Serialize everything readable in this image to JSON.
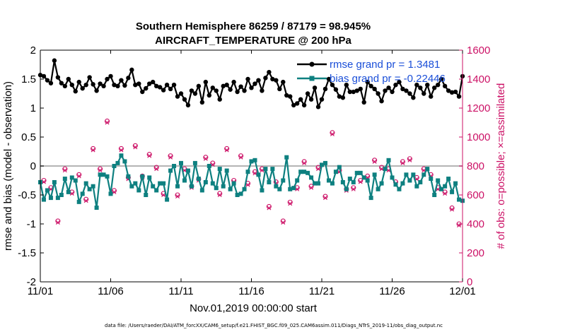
{
  "chart_data": {
    "type": "line",
    "title": "Southern Hemisphere 86259 / 87179 = 98.945%",
    "subtitle": "AIRCRAFT_TEMPERATURE @ 200 hPa",
    "xlabel": "Nov.01,2019 00:00:00 start",
    "ylabel_left": "rmse and bias (model - observation)",
    "ylabel_right": "# of obs: o=possible; ×=assimilated",
    "footnote": "data file: /Users/raeder/DAI/ATM_forcXX/CAM6_setup/f.e21.FHIST_BGC.f09_025.CAM6assim.011/Diags_NTrS_2019-11/obs_diag_output.nc",
    "x_range": [
      0,
      30
    ],
    "x_ticks": [
      0,
      5,
      10,
      15,
      20,
      25,
      30
    ],
    "x_tick_labels": [
      "11/01",
      "11/06",
      "11/11",
      "11/16",
      "11/21",
      "11/26",
      "12/01"
    ],
    "ylim_left": [
      -2,
      2
    ],
    "y_ticks_left": [
      "2",
      "1.5",
      "1",
      "0.5",
      "0",
      "-0.5",
      "-1",
      "-1.5",
      "-2"
    ],
    "ylim_right": [
      0,
      1600
    ],
    "y_ticks_right": [
      "1600",
      "1400",
      "1200",
      "1000",
      "800",
      "600",
      "400",
      "200",
      "0"
    ],
    "zero_line": 0,
    "colors": {
      "rmse": "#000000",
      "bias": "#0e8080",
      "counts": "#cc1166",
      "legend_text": "#1b4fd8",
      "zero": "#b5b5b5"
    },
    "legend": [
      "rmse grand pr = 1.3481",
      "bias grand pr = -0.22446"
    ],
    "series": [
      {
        "name": "rmse",
        "axis": "left",
        "x": [
          0.0,
          0.25,
          0.5,
          0.75,
          1.0,
          1.25,
          1.5,
          1.75,
          2.0,
          2.25,
          2.5,
          2.75,
          3.0,
          3.25,
          3.5,
          3.75,
          4.0,
          4.25,
          4.5,
          4.75,
          5.0,
          5.25,
          5.5,
          5.75,
          6.0,
          6.25,
          6.5,
          6.75,
          7.0,
          7.25,
          7.5,
          7.75,
          8.0,
          8.25,
          8.5,
          8.75,
          9.0,
          9.25,
          9.5,
          9.75,
          10.0,
          10.25,
          10.5,
          10.75,
          11.0,
          11.25,
          11.5,
          11.75,
          12.0,
          12.25,
          12.5,
          12.75,
          13.0,
          13.25,
          13.5,
          13.75,
          14.0,
          14.25,
          14.5,
          14.75,
          15.0,
          15.25,
          15.5,
          15.75,
          16.0,
          16.25,
          16.5,
          16.75,
          17.0,
          17.25,
          17.5,
          17.75,
          18.0,
          18.25,
          18.5,
          18.75,
          19.0,
          19.25,
          19.5,
          19.75,
          20.0,
          20.25,
          20.5,
          20.75,
          21.0,
          21.25,
          21.5,
          21.75,
          22.0,
          22.25,
          22.5,
          22.75,
          23.0,
          23.25,
          23.5,
          23.75,
          24.0,
          24.25,
          24.5,
          24.75,
          25.0,
          25.25,
          25.5,
          25.75,
          26.0,
          26.25,
          26.5,
          26.75,
          27.0,
          27.25,
          27.5,
          27.75,
          28.0,
          28.25,
          28.5,
          28.75,
          29.0,
          29.25,
          29.5,
          29.75,
          30.0
        ],
        "values": [
          1.57,
          1.55,
          1.48,
          1.43,
          1.82,
          1.53,
          1.43,
          1.38,
          1.5,
          1.4,
          1.29,
          1.45,
          1.34,
          1.4,
          1.53,
          1.41,
          1.3,
          1.42,
          1.38,
          1.5,
          1.55,
          1.4,
          1.38,
          1.48,
          1.39,
          1.52,
          1.66,
          1.4,
          1.42,
          1.28,
          1.34,
          1.42,
          1.45,
          1.38,
          1.36,
          1.31,
          1.4,
          1.33,
          1.4,
          1.2,
          1.25,
          1.15,
          1.05,
          1.3,
          1.25,
          1.38,
          1.1,
          1.45,
          1.22,
          1.35,
          1.3,
          1.15,
          1.38,
          1.4,
          1.32,
          1.45,
          1.28,
          1.37,
          1.3,
          1.5,
          1.35,
          1.42,
          1.48,
          1.3,
          1.52,
          1.62,
          1.5,
          1.48,
          1.33,
          1.45,
          1.22,
          1.2,
          1.05,
          1.08,
          1.15,
          1.05,
          1.25,
          1.15,
          1.35,
          1.02,
          1.15,
          1.33,
          1.5,
          1.4,
          1.32,
          1.2,
          1.18,
          1.4,
          1.28,
          1.28,
          1.3,
          1.33,
          1.1,
          1.45,
          1.38,
          1.33,
          1.25,
          1.12,
          1.3,
          1.35,
          1.28,
          1.4,
          1.45,
          1.33,
          1.3,
          1.25,
          1.18,
          1.4,
          1.35,
          1.25,
          1.4,
          1.2,
          1.35,
          1.4,
          1.5,
          1.38,
          1.3,
          1.27,
          1.28,
          1.2,
          1.55
        ]
      },
      {
        "name": "bias",
        "axis": "left",
        "x": [
          0.0,
          0.25,
          0.5,
          0.75,
          1.0,
          1.25,
          1.5,
          1.75,
          2.0,
          2.25,
          2.5,
          2.75,
          3.0,
          3.25,
          3.5,
          3.75,
          4.0,
          4.25,
          4.5,
          4.75,
          5.0,
          5.25,
          5.5,
          5.75,
          6.0,
          6.25,
          6.5,
          6.75,
          7.0,
          7.25,
          7.5,
          7.75,
          8.0,
          8.25,
          8.5,
          8.75,
          9.0,
          9.25,
          9.5,
          9.75,
          10.0,
          10.25,
          10.5,
          10.75,
          11.0,
          11.25,
          11.5,
          11.75,
          12.0,
          12.25,
          12.5,
          12.75,
          13.0,
          13.25,
          13.5,
          13.75,
          14.0,
          14.25,
          14.5,
          14.75,
          15.0,
          15.25,
          15.5,
          15.75,
          16.0,
          16.25,
          16.5,
          16.75,
          17.0,
          17.25,
          17.5,
          17.75,
          18.0,
          18.25,
          18.5,
          18.75,
          19.0,
          19.25,
          19.5,
          19.75,
          20.0,
          20.25,
          20.5,
          20.75,
          21.0,
          21.25,
          21.5,
          21.75,
          22.0,
          22.25,
          22.5,
          22.75,
          23.0,
          23.25,
          23.5,
          23.75,
          24.0,
          24.25,
          24.5,
          24.75,
          25.0,
          25.25,
          25.5,
          25.75,
          26.0,
          26.25,
          26.5,
          26.75,
          27.0,
          27.25,
          27.5,
          27.75,
          28.0,
          28.25,
          28.5,
          28.75,
          29.0,
          29.25,
          29.5,
          29.75,
          30.0
        ],
        "values": [
          -0.28,
          -0.58,
          -0.42,
          -0.55,
          -0.28,
          -0.55,
          -0.5,
          -0.22,
          -0.45,
          -0.2,
          -0.25,
          -0.62,
          -0.48,
          -0.3,
          -0.4,
          -0.35,
          -0.72,
          -0.15,
          -0.15,
          -0.18,
          -0.48,
          0.0,
          0.05,
          0.18,
          0.08,
          -0.18,
          -0.35,
          -0.3,
          -0.42,
          -0.18,
          -0.5,
          -0.2,
          -0.35,
          -0.42,
          -0.3,
          -0.3,
          -0.58,
          -0.08,
          0.0,
          -0.35,
          0.05,
          -0.25,
          -0.08,
          -0.35,
          0.05,
          -0.22,
          -0.42,
          -0.28,
          0.0,
          -0.3,
          -0.38,
          -0.05,
          -0.35,
          -0.08,
          -0.4,
          -0.3,
          -0.5,
          -0.48,
          -0.4,
          -0.1,
          0.08,
          0.1,
          -0.15,
          -0.42,
          -0.05,
          -0.28,
          -0.05,
          -0.35,
          -0.4,
          -0.25,
          0.15,
          -0.4,
          -0.38,
          -0.25,
          -0.1,
          -0.1,
          -0.12,
          -0.2,
          -0.3,
          -0.3,
          0.02,
          0.05,
          -0.25,
          -0.3,
          -0.1,
          -0.02,
          -0.28,
          -0.4,
          -0.22,
          -0.28,
          -0.12,
          -0.12,
          -0.2,
          -0.25,
          -0.55,
          -0.15,
          -0.4,
          -0.3,
          -0.05,
          0.1,
          -0.2,
          -0.32,
          -0.4,
          -0.3,
          -0.15,
          -0.25,
          -0.15,
          -0.35,
          -0.28,
          -0.15,
          -0.05,
          -0.22,
          -0.5,
          -0.25,
          -0.4,
          -0.35,
          -0.22,
          -0.45,
          -0.3,
          -0.58,
          -0.6
        ]
      },
      {
        "name": "obs possible",
        "axis": "right",
        "marker": "o",
        "x": [
          0.25,
          0.75,
          1.25,
          1.75,
          2.25,
          2.75,
          3.25,
          3.75,
          4.25,
          4.75,
          5.25,
          5.75,
          6.25,
          6.75,
          7.25,
          7.75,
          8.25,
          8.75,
          9.25,
          9.75,
          10.25,
          10.75,
          11.25,
          11.75,
          12.25,
          12.75,
          13.25,
          13.75,
          14.25,
          14.75,
          15.25,
          15.75,
          16.25,
          16.75,
          17.25,
          17.75,
          18.25,
          18.75,
          19.25,
          19.75,
          20.25,
          20.75,
          21.25,
          21.75,
          22.25,
          22.75,
          23.25,
          23.75,
          24.25,
          24.75,
          25.25,
          25.75,
          26.25,
          26.75,
          27.25,
          27.75,
          28.25,
          28.75,
          29.25,
          29.75
        ],
        "values": [
          700,
          650,
          420,
          780,
          620,
          740,
          570,
          920,
          780,
          1110,
          630,
          920,
          720,
          940,
          730,
          880,
          790,
          610,
          870,
          600,
          780,
          660,
          710,
          860,
          820,
          610,
          920,
          700,
          870,
          680,
          760,
          780,
          520,
          690,
          420,
          550,
          650,
          830,
          660,
          790,
          590,
          1030,
          770,
          640,
          650,
          700,
          730,
          840,
          790,
          780,
          690,
          830,
          850,
          720,
          780,
          740,
          650,
          620,
          510,
          400
        ]
      },
      {
        "name": "obs assimilated",
        "axis": "right",
        "marker": "x",
        "x": [
          0.25,
          0.75,
          1.25,
          1.75,
          2.25,
          2.75,
          3.25,
          3.75,
          4.25,
          4.75,
          5.25,
          5.75,
          6.25,
          6.75,
          7.25,
          7.75,
          8.25,
          8.75,
          9.25,
          9.75,
          10.25,
          10.75,
          11.25,
          11.75,
          12.25,
          12.75,
          13.25,
          13.75,
          14.25,
          14.75,
          15.25,
          15.75,
          16.25,
          16.75,
          17.25,
          17.75,
          18.25,
          18.75,
          19.25,
          19.75,
          20.25,
          20.75,
          21.25,
          21.75,
          22.25,
          22.75,
          23.25,
          23.75,
          24.25,
          24.75,
          25.25,
          25.75,
          26.25,
          26.75,
          27.25,
          27.75,
          28.25,
          28.75,
          29.25,
          29.75
        ],
        "values": [
          690,
          640,
          410,
          770,
          610,
          730,
          560,
          910,
          770,
          1100,
          620,
          910,
          710,
          930,
          720,
          870,
          780,
          600,
          860,
          590,
          770,
          650,
          700,
          850,
          810,
          600,
          910,
          690,
          860,
          670,
          750,
          770,
          510,
          680,
          410,
          540,
          640,
          820,
          650,
          780,
          580,
          1020,
          760,
          630,
          640,
          690,
          720,
          830,
          780,
          770,
          680,
          820,
          840,
          710,
          770,
          730,
          640,
          610,
          500,
          390
        ]
      }
    ]
  }
}
